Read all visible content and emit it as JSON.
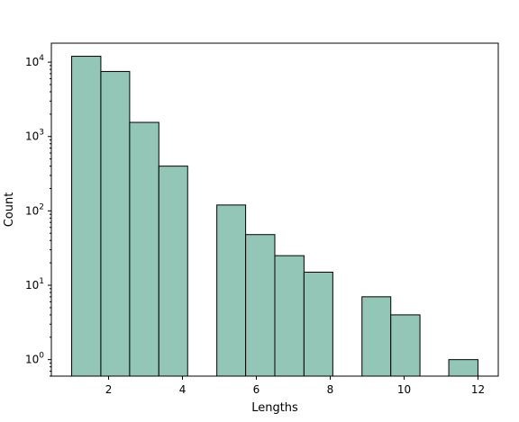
{
  "chart_data": {
    "type": "bar",
    "subtype": "histogram",
    "x": [
      1.4,
      2.2,
      2.9,
      3.7,
      5.3,
      6.1,
      6.9,
      7.7,
      9.3,
      10.1,
      11.7
    ],
    "values": [
      12000,
      7500,
      1550,
      400,
      120,
      48,
      25,
      15,
      7,
      4,
      1
    ],
    "bin_edges": [
      [
        1.0,
        1.79
      ],
      [
        1.79,
        2.57
      ],
      [
        2.57,
        3.36
      ],
      [
        3.36,
        4.14
      ],
      [
        4.93,
        5.71
      ],
      [
        5.71,
        6.5
      ],
      [
        6.5,
        7.29
      ],
      [
        7.29,
        8.07
      ],
      [
        8.86,
        9.64
      ],
      [
        9.64,
        10.43
      ],
      [
        11.21,
        12.0
      ]
    ],
    "xlabel": "Lengths",
    "ylabel": "Count",
    "xlim": [
      0.45,
      12.55
    ],
    "ylim": [
      0.6,
      18000
    ],
    "y_scale": "log",
    "x_ticks": [
      2,
      4,
      6,
      8,
      10,
      12
    ],
    "x_tick_labels": [
      "2",
      "4",
      "6",
      "8",
      "10",
      "12"
    ],
    "y_ticks": [
      1,
      10,
      100,
      1000,
      10000
    ],
    "y_tick_labels": [
      {
        "base": "10",
        "exp": "0"
      },
      {
        "base": "10",
        "exp": "1"
      },
      {
        "base": "10",
        "exp": "2"
      },
      {
        "base": "10",
        "exp": "3"
      },
      {
        "base": "10",
        "exp": "4"
      }
    ],
    "grid": false,
    "colors": {
      "bar_fill": "#93c6b7",
      "bar_edge": "#000000"
    }
  }
}
